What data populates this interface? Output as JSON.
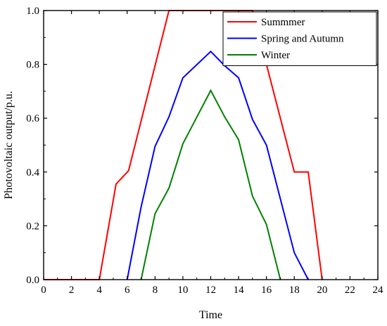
{
  "chart_data": {
    "type": "line",
    "xlabel": "Time",
    "ylabel": "Photovoltaic output/p.u.",
    "xlim": [
      0,
      24
    ],
    "ylim": [
      0,
      1.0
    ],
    "xticks": [
      "0",
      "2",
      "4",
      "6",
      "8",
      "10",
      "12",
      "14",
      "16",
      "18",
      "20",
      "22",
      "24"
    ],
    "yticks": [
      "0.0",
      "0.2",
      "0.4",
      "0.6",
      "0.8",
      "1.0"
    ],
    "grid": false,
    "legend_position": "top-right",
    "series": [
      {
        "name": "Summmer",
        "color": "#ff0000",
        "points": [
          [
            0,
            0
          ],
          [
            4,
            0
          ],
          [
            5.2,
            0.355
          ],
          [
            6.1,
            0.405
          ],
          [
            9,
            1.0
          ],
          [
            15,
            1.0
          ],
          [
            18,
            0.4
          ],
          [
            19,
            0.4
          ],
          [
            20,
            0
          ]
        ]
      },
      {
        "name": "Spring and Autumn",
        "color": "#0000ff",
        "points": [
          [
            6,
            0
          ],
          [
            7,
            0.27
          ],
          [
            8,
            0.495
          ],
          [
            9,
            0.605
          ],
          [
            10,
            0.75
          ],
          [
            12,
            0.848
          ],
          [
            13,
            0.795
          ],
          [
            14,
            0.75
          ],
          [
            15,
            0.595
          ],
          [
            16,
            0.5
          ],
          [
            18,
            0.1
          ],
          [
            19,
            0
          ]
        ]
      },
      {
        "name": "Winter",
        "color": "#008000",
        "points": [
          [
            7,
            0
          ],
          [
            8,
            0.245
          ],
          [
            9,
            0.34
          ],
          [
            10,
            0.505
          ],
          [
            12,
            0.703
          ],
          [
            13,
            0.605
          ],
          [
            14,
            0.52
          ],
          [
            15,
            0.31
          ],
          [
            16,
            0.205
          ],
          [
            17,
            0
          ]
        ]
      }
    ]
  }
}
